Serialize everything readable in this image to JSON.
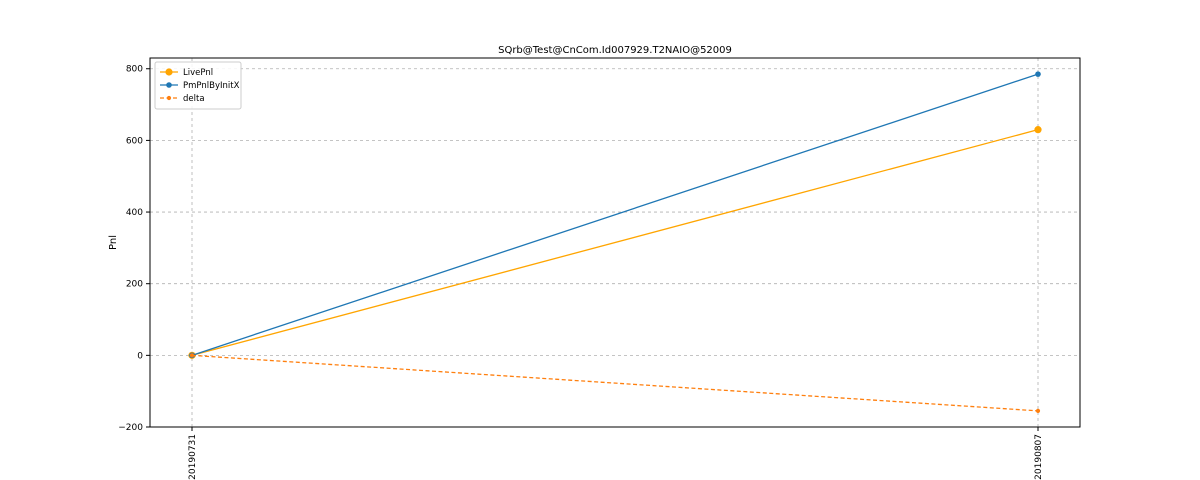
{
  "chart_data": {
    "type": "line",
    "title": "SQrb@Test@CnCom.Id007929.T2NAIO@52009",
    "xlabel": "",
    "ylabel": "Pnl",
    "categories": [
      "20190731",
      "20190807"
    ],
    "ylim": [
      -200,
      830
    ],
    "yticks": [
      -200,
      0,
      200,
      400,
      600,
      800
    ],
    "grid": true,
    "legend_position": "top-left",
    "series": [
      {
        "name": "LivePnl",
        "values": [
          0,
          630
        ],
        "color": "#ffa500",
        "line_style": "solid",
        "marker": "circle-large"
      },
      {
        "name": "PmPnlByInitX",
        "values": [
          0,
          785
        ],
        "color": "#1f77b4",
        "line_style": "solid",
        "marker": "circle"
      },
      {
        "name": "delta",
        "values": [
          0,
          -155
        ],
        "color": "#ff7f0e",
        "line_style": "dashed",
        "marker": "circle-small"
      }
    ]
  }
}
